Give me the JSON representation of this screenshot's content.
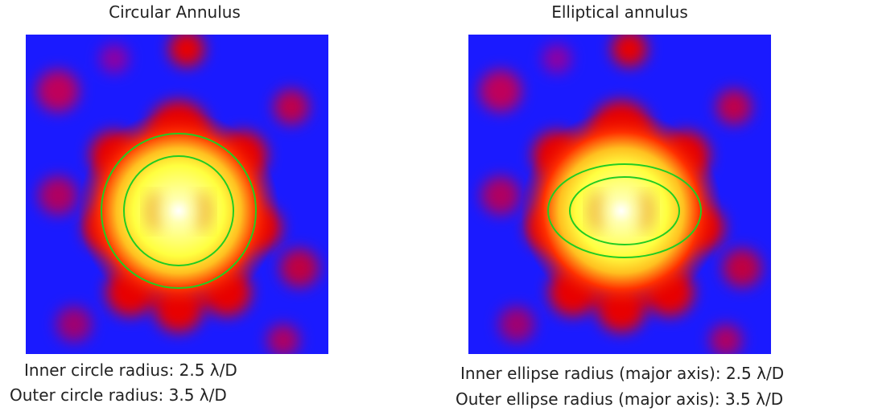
{
  "panels": [
    {
      "title": "Circular Annulus",
      "captions": [
        "Inner circle radius: 2.5 λ/D",
        "Outer circle radius: 3.5 λ/D"
      ]
    },
    {
      "title": "Elliptical annulus",
      "captions": [
        "Inner ellipse radius (major axis): 2.5 λ/D",
        "Outer ellipse radius (major axis): 3.5 λ/D"
      ]
    }
  ]
}
